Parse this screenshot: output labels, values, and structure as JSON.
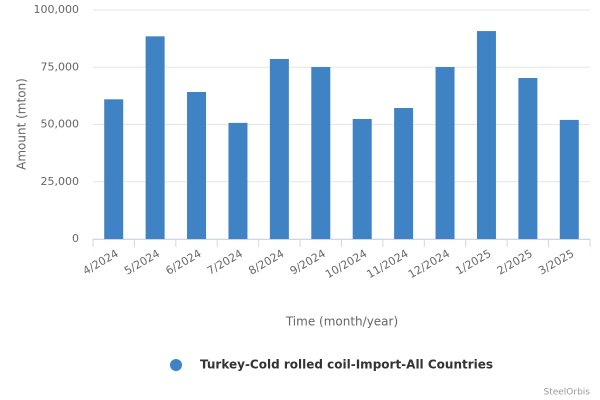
{
  "chart_data": {
    "type": "bar",
    "x_label": "Time (month/year)",
    "y_label": "Amount (mton)",
    "categories": [
      "4/2024",
      "5/2024",
      "6/2024",
      "7/2024",
      "8/2024",
      "9/2024",
      "10/2024",
      "11/2024",
      "12/2024",
      "1/2025",
      "2/2025",
      "3/2025"
    ],
    "series": [
      {
        "name": "Turkey-Cold rolled coil-Import-All Countries",
        "color": "#3f83c4",
        "values": [
          61000,
          88500,
          64200,
          50700,
          78600,
          75100,
          52400,
          57200,
          75100,
          90800,
          70300,
          52000
        ]
      }
    ],
    "ylim": [
      0,
      100000
    ],
    "yticks": [
      0,
      {
        "value": 25000,
        "label": "25,000"
      },
      {
        "value": 50000,
        "label": "50,000"
      },
      {
        "value": 75000,
        "label": "75,000"
      },
      {
        "value": 100000,
        "label": "100,000"
      }
    ],
    "grid": true,
    "legend": "bottom",
    "credits": "SteelOrbis"
  }
}
